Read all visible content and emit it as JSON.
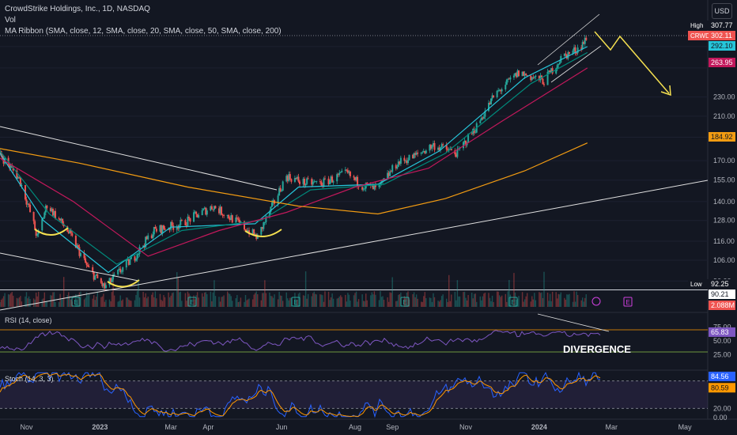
{
  "header": {
    "title": "CrowdStrike Holdings, Inc., 1D, NASDAQ",
    "vol_label": "Vol",
    "ma_label": "MA Ribbon (SMA, close, 12, SMA, close, 20, SMA, close, 50, SMA, close, 200)"
  },
  "currency": "USD",
  "rsi_label": "RSI (14, close)",
  "stoch_label": "Stoch (14, 3, 3)",
  "annotations": {
    "divergence": "DIVERGENCE"
  },
  "colors": {
    "bg": "#131722",
    "up": "#26a69a",
    "down": "#ef5350",
    "ma12": "#26c6da",
    "ma20": "#00897b",
    "ma50": "#c2185b",
    "ma200": "#f39c12",
    "rsi": "#7e57c2",
    "annotation": "#f5e050",
    "stoch_k": "#2962ff",
    "stoch_d": "#ff9800"
  },
  "chart_data": [
    {
      "type": "candlestick",
      "title": "CrowdStrike Holdings, Inc., 1D, NASDAQ",
      "scale": "log",
      "y_ticks": [
        96,
        106,
        116,
        128,
        140,
        155,
        170,
        190,
        210,
        230,
        263.95,
        292.1
      ],
      "x_ticks": [
        "Nov",
        "2023",
        "Mar",
        "Apr",
        "Jun",
        "Aug",
        "Sep",
        "Nov",
        "2024",
        "Mar",
        "May"
      ],
      "x_range": [
        "2022-10-10",
        "2024-05-20"
      ],
      "anchors": [
        [
          "2022-10-10",
          175
        ],
        [
          "2022-10-26",
          156
        ],
        [
          "2022-11-10",
          118
        ],
        [
          "2022-11-18",
          138
        ],
        [
          "2022-12-05",
          122
        ],
        [
          "2022-12-22",
          102
        ],
        [
          "2023-01-05",
          93
        ],
        [
          "2023-01-30",
          108
        ],
        [
          "2023-02-15",
          122
        ],
        [
          "2023-03-10",
          126
        ],
        [
          "2023-04-05",
          137
        ],
        [
          "2023-04-25",
          127
        ],
        [
          "2023-05-12",
          118
        ],
        [
          "2023-05-25",
          138
        ],
        [
          "2023-06-05",
          158
        ],
        [
          "2023-06-20",
          153
        ],
        [
          "2023-07-05",
          153
        ],
        [
          "2023-07-25",
          160
        ],
        [
          "2023-08-05",
          152
        ],
        [
          "2023-08-20",
          148
        ],
        [
          "2023-09-05",
          168
        ],
        [
          "2023-09-20",
          174
        ],
        [
          "2023-10-05",
          183
        ],
        [
          "2023-10-25",
          176
        ],
        [
          "2023-11-10",
          200
        ],
        [
          "2023-11-25",
          232
        ],
        [
          "2023-12-15",
          258
        ],
        [
          "2024-01-05",
          248
        ],
        [
          "2024-01-20",
          278
        ],
        [
          "2024-02-01",
          288
        ],
        [
          "2024-02-09",
          302.11
        ]
      ],
      "ma_series": [
        {
          "name": "SMA 12",
          "values": [
            [
              "2022-10-10",
              176
            ],
            [
              "2022-11-15",
              128
            ],
            [
              "2023-01-08",
              100
            ],
            [
              "2023-03-01",
              124
            ],
            [
              "2023-05-10",
              126
            ],
            [
              "2023-06-15",
              150
            ],
            [
              "2023-08-20",
              152
            ],
            [
              "2023-10-10",
              178
            ],
            [
              "2023-12-20",
              252
            ],
            [
              "2024-02-10",
              292.1
            ]
          ]
        },
        {
          "name": "SMA 20",
          "values": [
            [
              "2022-10-10",
              178
            ],
            [
              "2022-11-20",
              132
            ],
            [
              "2023-01-15",
              104
            ],
            [
              "2023-03-10",
              122
            ],
            [
              "2023-05-15",
              128
            ],
            [
              "2023-06-25",
              148
            ],
            [
              "2023-08-25",
              152
            ],
            [
              "2023-10-15",
              176
            ],
            [
              "2023-12-25",
              245
            ],
            [
              "2024-02-10",
              284
            ]
          ]
        },
        {
          "name": "SMA 50",
          "values": [
            [
              "2022-10-10",
              172
            ],
            [
              "2022-12-10",
              140
            ],
            [
              "2023-02-10",
              108
            ],
            [
              "2023-04-10",
              122
            ],
            [
              "2023-06-05",
              133
            ],
            [
              "2023-08-01",
              150
            ],
            [
              "2023-10-01",
              164
            ],
            [
              "2023-12-01",
              205
            ],
            [
              "2024-02-10",
              263.95
            ]
          ]
        },
        {
          "name": "SMA 200",
          "values": [
            [
              "2022-10-10",
              180
            ],
            [
              "2022-12-15",
              168
            ],
            [
              "2023-03-15",
              150
            ],
            [
              "2023-06-15",
              137
            ],
            [
              "2023-08-20",
              132
            ],
            [
              "2023-10-15",
              142
            ],
            [
              "2023-12-20",
              162
            ],
            [
              "2024-02-10",
              184.92
            ]
          ]
        }
      ],
      "hline_high": {
        "label": "High",
        "value": 307.77
      },
      "hline_low": {
        "label": "Low",
        "value": 92.25
      },
      "price_tags": [
        {
          "label": "High",
          "value": "307.77"
        },
        {
          "label": "CRWD",
          "value": "302.11"
        },
        {
          "label": "",
          "value": "292.10"
        },
        {
          "label": "",
          "value": "263.95"
        },
        {
          "label": "",
          "value": "184.92"
        },
        {
          "label": "Low",
          "value": "92.25"
        }
      ],
      "volume_tags": [
        "90.21",
        "2.088M"
      ]
    },
    {
      "type": "line",
      "title": "RSI (14, close)",
      "y_ticks": [
        75,
        65.83,
        50,
        25
      ],
      "bands": [
        70,
        30
      ],
      "last": 65.83
    },
    {
      "type": "line",
      "title": "Stoch (14, 3, 3)",
      "y_ticks": [
        84.56,
        80.59,
        20,
        0
      ],
      "series": [
        {
          "name": "%K",
          "last": 84.56
        },
        {
          "name": "%D",
          "last": 80.59
        }
      ],
      "bands": [
        80,
        20
      ]
    }
  ]
}
